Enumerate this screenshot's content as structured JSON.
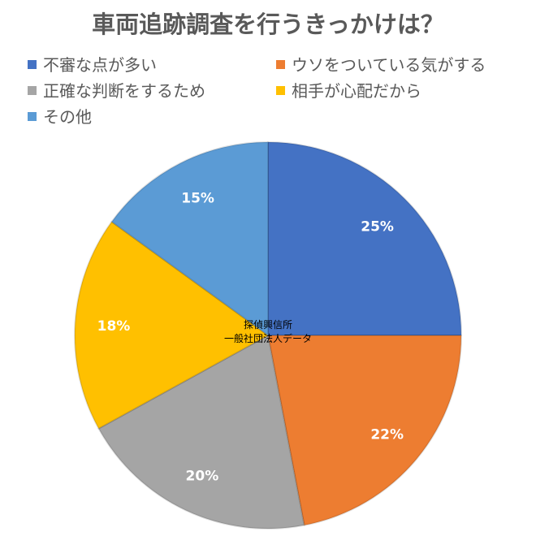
{
  "chart_data": {
    "type": "pie",
    "title": "車両追跡調査を行うきっかけは？",
    "categories": [
      "不審な点が多い",
      "ウソをついている気がする",
      "正確な判断をするため",
      "相手が心配だから",
      "その他"
    ],
    "values": [
      25,
      22,
      20,
      18,
      15
    ],
    "value_labels": [
      "25%",
      "22%",
      "20%",
      "18%",
      "15%"
    ],
    "colors": [
      "#4472C4",
      "#ED7D31",
      "#A5A5A5",
      "#FFC000",
      "#5B9BD5"
    ],
    "legend_position": "top",
    "source": [
      "探偵興信所",
      "一般社団法人データ"
    ]
  }
}
